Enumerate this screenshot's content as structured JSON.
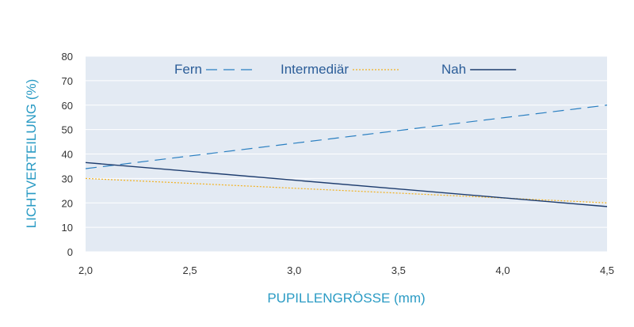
{
  "chart_data": {
    "type": "line",
    "xlabel": "PUPILLENGRÖSSE (mm)",
    "ylabel": "LICHTVERTEILUNG (%)",
    "xlim": [
      2.0,
      4.5
    ],
    "ylim": [
      0,
      80
    ],
    "x_ticks": [
      "2,0",
      "2,5",
      "3,0",
      "3,5",
      "4,0",
      "4,5"
    ],
    "y_ticks": [
      "0",
      "10",
      "20",
      "30",
      "40",
      "50",
      "60",
      "70",
      "80"
    ],
    "grid": "horizontal",
    "legend_position": "top",
    "series": [
      {
        "name": "Fern",
        "x": [
          2.0,
          4.5
        ],
        "y": [
          34,
          60
        ],
        "color": "#2a7fc1",
        "style": "dashed"
      },
      {
        "name": "Intermediär",
        "x": [
          2.0,
          4.5
        ],
        "y": [
          30,
          20
        ],
        "color": "#f2b11f",
        "style": "dotted"
      },
      {
        "name": "Nah",
        "x": [
          2.0,
          4.5
        ],
        "y": [
          36.5,
          18.5
        ],
        "color": "#1d3c6e",
        "style": "solid"
      }
    ]
  }
}
